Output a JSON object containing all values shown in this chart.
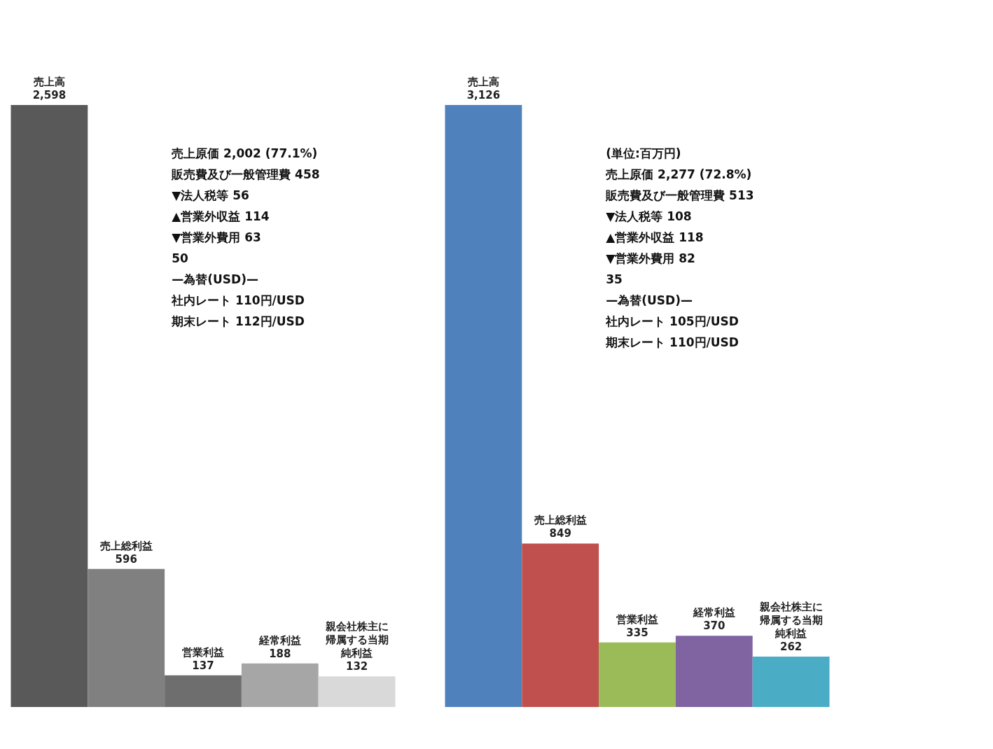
{
  "chart_data": [
    {
      "type": "bar",
      "categories": [
        "売上高",
        "売上総利益",
        "営業利益",
        "経常利益",
        "親会社株主に帰属する当期純利益"
      ],
      "values": [
        2598,
        596,
        137,
        188,
        132
      ],
      "value_labels": [
        "2,598",
        "596",
        "137",
        "188",
        "132"
      ],
      "colors": [
        "#595959",
        "#808080",
        "#6e6e6e",
        "#a6a6a6",
        "#d9d9d9"
      ],
      "tick_labels": false,
      "annotations": [
        "売上原価 2,002 (77.1%)",
        "販売費及び一般管理費 458",
        "▼法人税等 56",
        "▲営業外収益 114",
        "▼営業外費用 63",
        "50",
        "—為替(USD)—",
        "社内レート 110円/USD",
        "期末レート 112円/USD"
      ]
    },
    {
      "type": "bar",
      "categories": [
        "売上高",
        "売上総利益",
        "営業利益",
        "経常利益",
        "親会社株主に帰属する当期純利益"
      ],
      "values": [
        3126,
        849,
        335,
        370,
        262
      ],
      "value_labels": [
        "3,126",
        "849",
        "335",
        "370",
        "262"
      ],
      "colors": [
        "#4f81bd",
        "#c0504d",
        "#9bbb59",
        "#8064a2",
        "#4bacc6"
      ],
      "tick_labels": false,
      "annotations": [
        "(単位:百万円)",
        "売上原価 2,277 (72.8%)",
        "販売費及び一般管理費 513",
        "▼法人税等 108",
        "▲営業外収益 118",
        "▼営業外費用 82",
        "35",
        "—為替(USD)—",
        "社内レート 105円/USD",
        "期末レート 110円/USD"
      ]
    }
  ]
}
